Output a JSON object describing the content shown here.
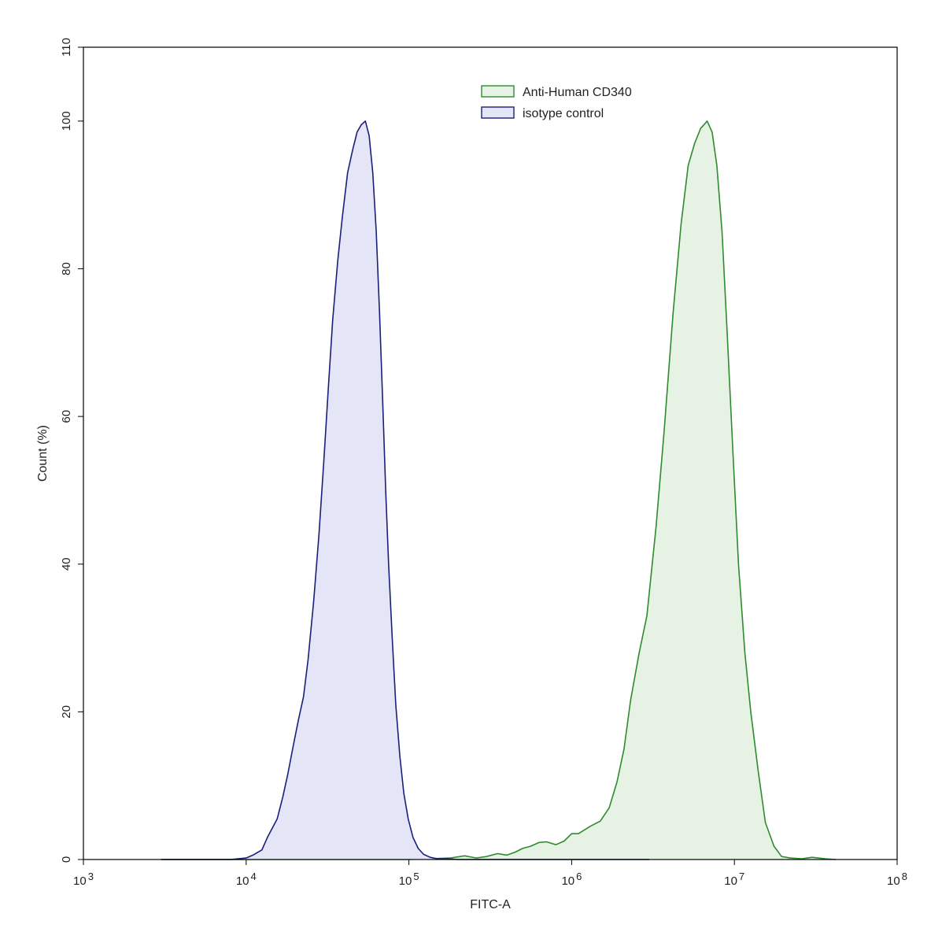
{
  "chart_data": {
    "type": "area",
    "xlabel": "FITC-A",
    "ylabel": "Count  (%)",
    "xscale": "log",
    "xlim": [
      1000,
      100000000
    ],
    "ylim": [
      0,
      110
    ],
    "x_ticks": [
      {
        "value": 1000,
        "base": "10",
        "exp": "3"
      },
      {
        "value": 10000,
        "base": "10",
        "exp": "4"
      },
      {
        "value": 100000,
        "base": "10",
        "exp": "5"
      },
      {
        "value": 1000000,
        "base": "10",
        "exp": "6"
      },
      {
        "value": 10000000,
        "base": "10",
        "exp": "7"
      },
      {
        "value": 100000000,
        "base": "10",
        "exp": "8"
      }
    ],
    "y_ticks": [
      0,
      20,
      40,
      60,
      80,
      100,
      110
    ],
    "legend_position": "top-center",
    "series": [
      {
        "name": "Anti-Human CD340",
        "stroke": "#2e8b2e",
        "fill": "#e6f3e4",
        "x": [
          3000,
          100000,
          180000,
          220000,
          260000,
          300000,
          350000,
          400000,
          450000,
          500000,
          560000,
          630000,
          700000,
          800000,
          900000,
          1000000,
          1100000,
          1300000,
          1500000,
          1700000,
          1900000,
          2100000,
          2300000,
          2600000,
          2900000,
          3300000,
          3700000,
          4200000,
          4700000,
          5200000,
          5700000,
          6200000,
          6800000,
          7300000,
          7800000,
          8400000,
          9000000,
          9800000,
          10600000,
          11600000,
          12600000,
          14000000,
          15500000,
          17500000,
          19500000,
          22000000,
          26000000,
          30000000,
          36000000,
          42000000
        ],
        "values": [
          0,
          0,
          0.2,
          0.5,
          0.2,
          0.4,
          0.8,
          0.6,
          1.0,
          1.5,
          1.8,
          2.3,
          2.4,
          2.0,
          2.5,
          3.5,
          3.5,
          4.5,
          5.2,
          7.0,
          10.5,
          15.0,
          21.5,
          28.0,
          33.0,
          45.0,
          58.0,
          74.0,
          86.0,
          94.0,
          97.0,
          99.0,
          100.0,
          98.5,
          94.0,
          85.0,
          72.0,
          55.0,
          40.0,
          28.0,
          20.0,
          12.0,
          5.0,
          1.8,
          0.4,
          0.2,
          0.1,
          0.3,
          0.1,
          0
        ]
      },
      {
        "name": "isotype control",
        "stroke": "#1a1f7a",
        "fill": "#e4e5f7",
        "x": [
          3000,
          8000,
          10000,
          11000,
          12500,
          13500,
          14500,
          15500,
          16800,
          18000,
          19500,
          21000,
          22500,
          24000,
          26000,
          28000,
          30000,
          32000,
          34000,
          36500,
          39000,
          42000,
          45000,
          48000,
          51000,
          54000,
          57000,
          60000,
          63000,
          66000,
          69000,
          72000,
          75000,
          79000,
          83000,
          88000,
          93000,
          99000,
          106000,
          114000,
          123000,
          135000,
          150000,
          170000,
          200000,
          1000000,
          3000000
        ],
        "values": [
          0,
          0,
          0.2,
          0.6,
          1.3,
          3.0,
          4.3,
          5.5,
          8.5,
          11.5,
          15.5,
          19.0,
          22.0,
          27.0,
          35.0,
          44.0,
          54.0,
          64.0,
          73.0,
          81.0,
          87.0,
          93.0,
          96.0,
          98.5,
          99.5,
          100.0,
          98.0,
          93.0,
          85.0,
          74.0,
          62.0,
          50.0,
          40.0,
          30.0,
          21.0,
          14.0,
          9.0,
          5.5,
          3.0,
          1.5,
          0.7,
          0.3,
          0.1,
          0.1,
          0,
          0,
          0
        ]
      }
    ]
  }
}
